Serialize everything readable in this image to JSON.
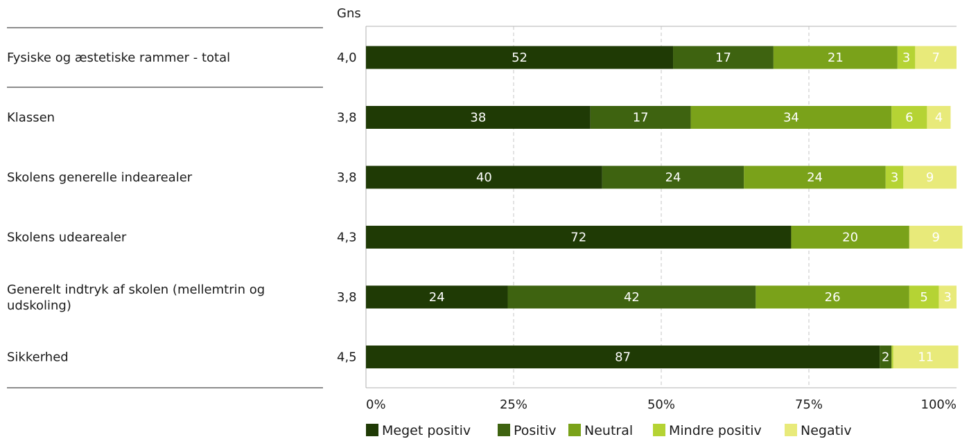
{
  "chart_data": {
    "type": "bar",
    "orientation": "horizontal",
    "stacked": true,
    "avg_header": "Gns",
    "categories": [
      "Fysiske og æstetiske rammer - total",
      "Klassen",
      "Skolens generelle indearealer",
      "Skolens udearealer",
      "Generelt indtryk af skolen (mellemtrin og udskoling)",
      "Sikkerhed"
    ],
    "averages": [
      "4,0",
      "3,8",
      "3,8",
      "4,3",
      "3,8",
      "4,5"
    ],
    "series": [
      {
        "name": "Meget positiv",
        "color": "#1f3a05",
        "values": [
          52,
          38,
          40,
          72,
          24,
          87
        ]
      },
      {
        "name": "Positiv",
        "color": "#3e6310",
        "values": [
          17,
          17,
          24,
          0,
          42,
          2
        ]
      },
      {
        "name": "Neutral",
        "color": "#7aa21a",
        "values": [
          21,
          34,
          24,
          20,
          26,
          0
        ]
      },
      {
        "name": "Mindre positiv",
        "color": "#b5d334",
        "values": [
          3,
          6,
          3,
          0,
          5,
          0.3
        ]
      },
      {
        "name": "Negativ",
        "color": "#e8ea7a",
        "values": [
          7,
          4,
          9,
          9,
          3,
          11
        ]
      }
    ],
    "value_labels": [
      [
        "52",
        "17",
        "21",
        "3",
        "7"
      ],
      [
        "38",
        "17",
        "34",
        "6",
        "4"
      ],
      [
        "40",
        "24",
        "24",
        "3",
        "9"
      ],
      [
        "72",
        "",
        "20",
        "",
        "9"
      ],
      [
        "24",
        "42",
        "26",
        "5",
        "3"
      ],
      [
        "87",
        "2",
        "",
        "",
        "11"
      ]
    ],
    "xticks": [
      "0%",
      "25%",
      "50%",
      "75%",
      "100%"
    ],
    "xlim": [
      0,
      100
    ],
    "grid": "vertical-dashed",
    "legend_position": "bottom"
  }
}
